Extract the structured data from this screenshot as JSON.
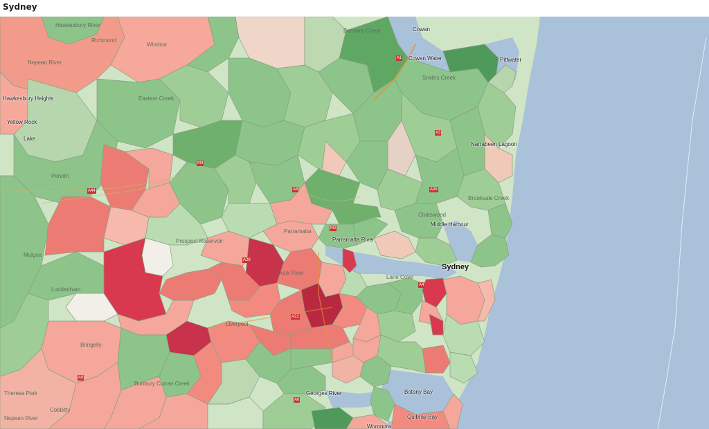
{
  "header": {
    "title": "Sydney"
  },
  "colors": {
    "ocean": "#a9c1d9",
    "green_light": "#bcd9b2",
    "green_mid": "#8cc48a",
    "green_dark": "#4f9a5a",
    "red_light": "#f4a79a",
    "red_mid": "#ec7c73",
    "red_dark": "#c8324a",
    "white": "#f2efe8"
  },
  "labels": {
    "hawkesbury_river": "Hawkesbury River",
    "richmond": "Richmond",
    "windsor": "Windsor",
    "nepean_river": "Nepean River",
    "hawkesbury_heights": "Hawkesbury Heights",
    "yellow_rock": "Yellow Rock",
    "lake": "Lake",
    "eastern_creek": "Eastern Creek",
    "penrith": "Penrith",
    "a44": "A44",
    "a9": "A9",
    "m4": "M4",
    "prospect_reservoir": "Prospect Reservoir",
    "parramatta": "Parramatta",
    "parramatta_river": "Parramatta River",
    "duck_river": "Duck River",
    "liverpool": "Liverpool",
    "a22": "A22",
    "a28": "A28",
    "mulgoa": "Mulgoa",
    "luddenham": "Luddenham",
    "bringelly": "Bringelly",
    "theresa_park": "Theresa Park",
    "cobbitty": "Cobbitty",
    "nepean_river_2": "Nepean River",
    "bunbury_curran_creek": "Bunbury Curran Creek",
    "georges_river": "Georges River",
    "cowan_water": "Cowan Water",
    "pittwater": "Pittwater",
    "smiths_creek": "Smiths Creek",
    "narrabeen_lagoon": "Narrabeen Lagoon",
    "brookvale_creek": "Brookvale Creek",
    "chatswood": "Chatswood",
    "middle_harbour": "Middle Harbour",
    "sydney": "Sydney",
    "lane_cove": "Lane Cove",
    "botany_bay": "Botany Bay",
    "quibray_bay": "Quibray Bay",
    "woronora": "Woronora",
    "a1": "A1",
    "a4": "A4",
    "a3": "A3",
    "a8": "A8",
    "a38": "A38",
    "m2": "M2",
    "a6": "A6",
    "berowra_creek": "Berowra Creek",
    "cowan": "Cowan"
  }
}
